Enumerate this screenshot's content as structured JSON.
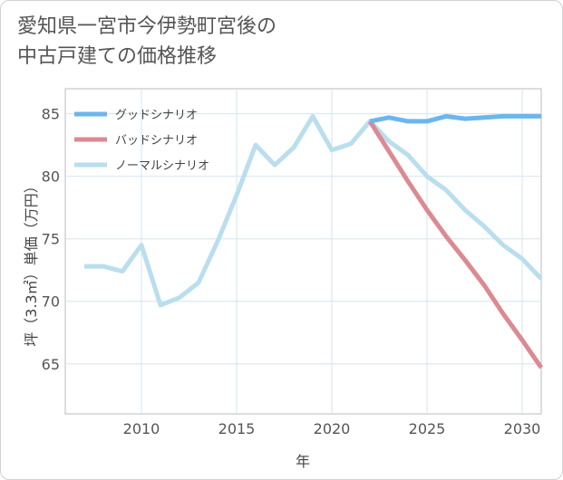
{
  "title_lines": [
    "愛知県一宮市今伊勢町宮後の",
    "中古戸建ての価格推移"
  ],
  "chart_data": {
    "type": "line",
    "xlabel": "年",
    "ylabel": "坪（3.3㎡）単価（万円）",
    "xlim": [
      2006,
      2031
    ],
    "ylim": [
      61,
      87
    ],
    "x_ticks": [
      2010,
      2015,
      2020,
      2025,
      2030
    ],
    "y_ticks": [
      65,
      70,
      75,
      80,
      85
    ],
    "grid": true,
    "legend_position": "top-left",
    "series": [
      {
        "name": "グッドシナリオ",
        "color": "#6cb6ee",
        "x": [
          2022,
          2023,
          2024,
          2025,
          2026,
          2027,
          2028,
          2029,
          2030,
          2031
        ],
        "values": [
          84.4,
          84.7,
          84.4,
          84.4,
          84.8,
          84.6,
          84.7,
          84.8,
          84.8,
          84.8
        ]
      },
      {
        "name": "バッドシナリオ",
        "color": "#dc8a92",
        "x": [
          2022,
          2023,
          2024,
          2025,
          2026,
          2027,
          2028,
          2029,
          2030,
          2031
        ],
        "values": [
          84.4,
          82.0,
          79.6,
          77.3,
          75.2,
          73.3,
          71.3,
          69.0,
          66.9,
          64.7
        ]
      },
      {
        "name": "ノーマルシナリオ",
        "color": "#badeee",
        "x": [
          2007,
          2008,
          2009,
          2010,
          2011,
          2012,
          2013,
          2014,
          2015,
          2016,
          2017,
          2018,
          2019,
          2020,
          2021,
          2022,
          2023,
          2024,
          2025,
          2026,
          2027,
          2028,
          2029,
          2030,
          2031
        ],
        "values": [
          72.8,
          72.8,
          72.4,
          74.5,
          69.7,
          70.3,
          71.5,
          74.8,
          78.5,
          82.5,
          80.9,
          82.3,
          84.8,
          82.1,
          82.6,
          84.4,
          82.8,
          81.7,
          80.0,
          78.9,
          77.3,
          76.0,
          74.5,
          73.4,
          71.8
        ]
      }
    ]
  }
}
